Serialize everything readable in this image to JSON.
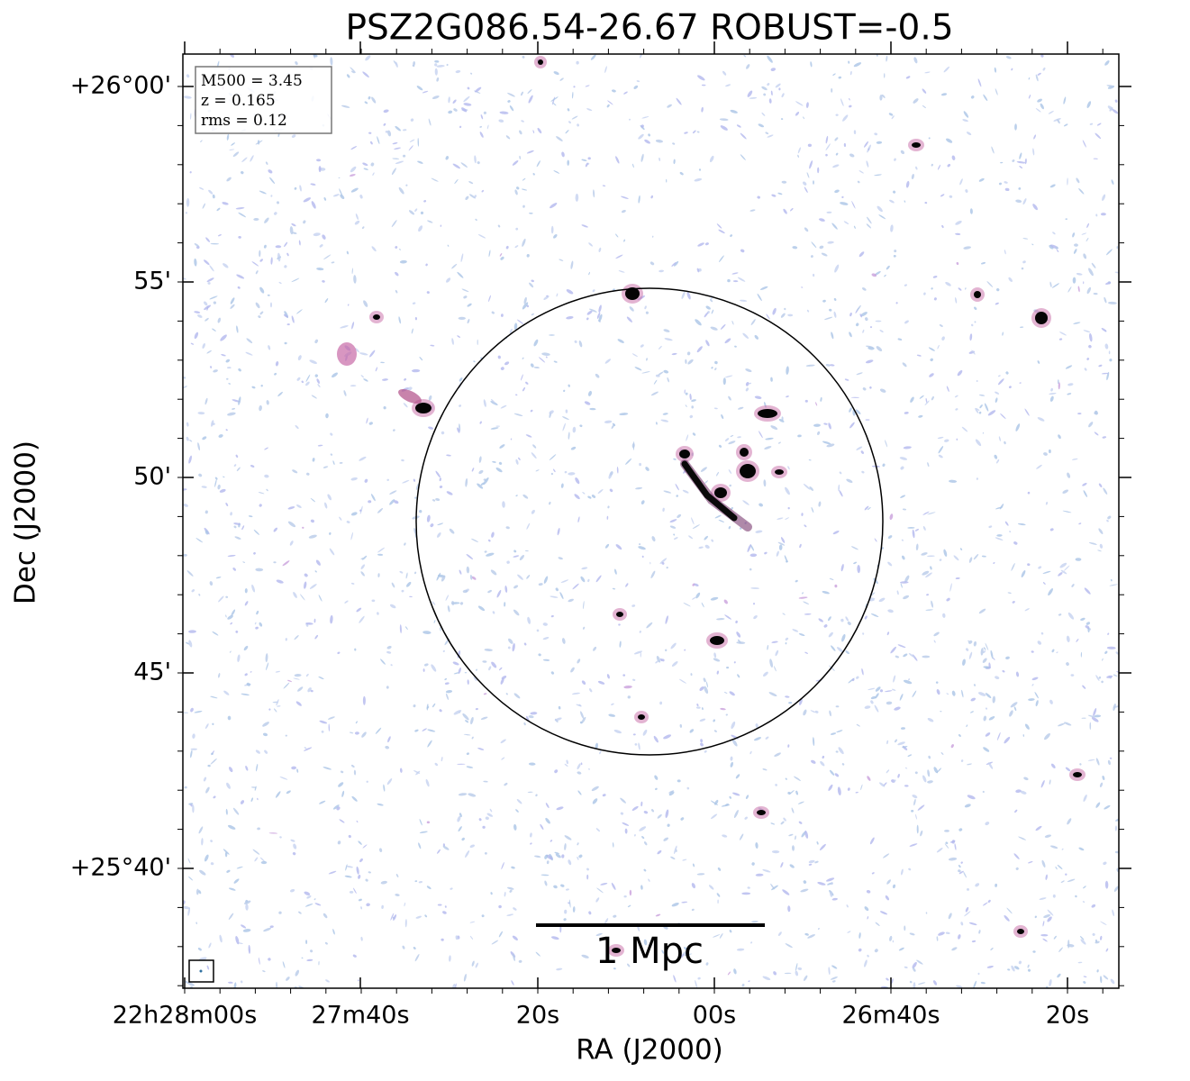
{
  "title": "PSZ2G086.54-26.67 ROBUST=-0.5",
  "x_axis": {
    "label": "RA (J2000)",
    "ticks": [
      "22h28m00s",
      "27m40s",
      "20s",
      "00s",
      "26m40s",
      "20s"
    ]
  },
  "y_axis": {
    "label": "Dec (J2000)",
    "ticks": [
      "+26°00'",
      "55'",
      "50'",
      "45'",
      "+25°40'"
    ]
  },
  "info_box": [
    "M500 = 3.45",
    "z = 0.165",
    "rms = 0.12"
  ],
  "scale_bar": "1 Mpc"
}
